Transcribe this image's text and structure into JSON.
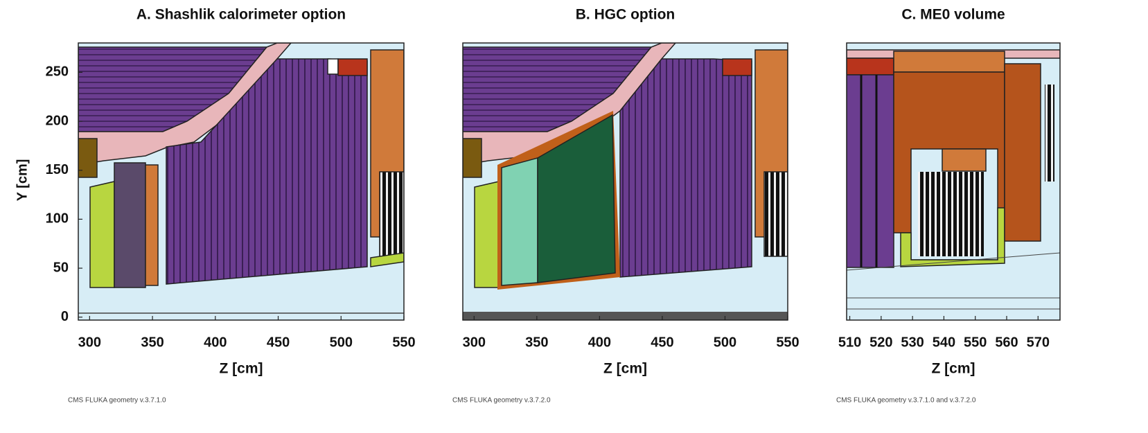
{
  "chart_data": [
    {
      "type": "geometry",
      "title": "A. Shashlik calorimeter option",
      "xlabel": "Z [cm]",
      "ylabel": "Y [cm]",
      "xlim": [
        291,
        550
      ],
      "xticks": [
        300,
        350,
        400,
        450,
        500,
        550
      ],
      "ylim": [
        -3,
        280
      ],
      "yticks": [
        0,
        50,
        100,
        150,
        200,
        250
      ],
      "note": "CMS FLUKA geometry v.3.7.1.0"
    },
    {
      "type": "geometry",
      "title": "B. HGC option",
      "xlabel": "Z [cm]",
      "xlim": [
        291,
        550
      ],
      "xticks": [
        300,
        350,
        400,
        450,
        500,
        550
      ],
      "note": "CMS FLUKA geometry v.3.7.2.0"
    },
    {
      "type": "geometry",
      "title": "C. ME0 volume",
      "xlabel": "Z [cm]",
      "xlim": [
        509,
        577
      ],
      "xticks": [
        510,
        520,
        530,
        540,
        550,
        560,
        570
      ],
      "note": "CMS FLUKA geometry v.3.7.1.0 and v.3.7.2.0"
    }
  ]
}
